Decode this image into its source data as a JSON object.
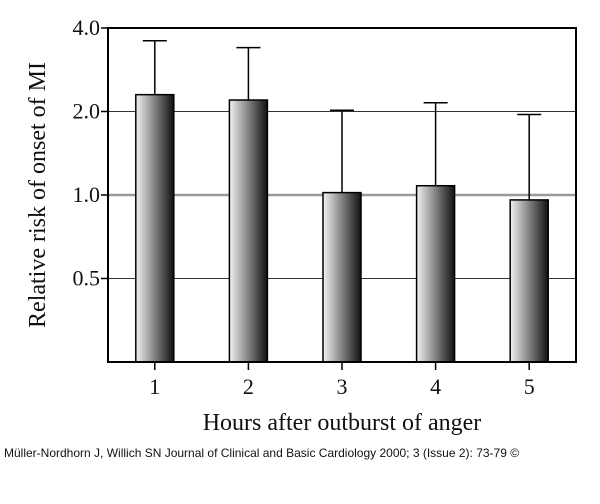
{
  "chart_data": {
    "type": "bar",
    "title": "",
    "xlabel": "Hours after outburst of anger",
    "ylabel": "Relative risk of onset of MI",
    "y_scale": "log",
    "ylim": [
      0.25,
      4.0
    ],
    "y_ticks": [
      "4.0",
      "2.0",
      "1.0",
      "0.5"
    ],
    "y_tick_values": [
      4.0,
      2.0,
      1.0,
      0.5
    ],
    "reference_line": 1.0,
    "grid": "horizontal",
    "categories": [
      "1",
      "2",
      "3",
      "4",
      "5"
    ],
    "values": [
      2.3,
      2.2,
      1.02,
      1.08,
      0.96
    ],
    "error_upper": [
      3.6,
      3.4,
      2.02,
      2.15,
      1.95
    ],
    "series": [
      {
        "values": [
          2.3,
          2.2,
          1.02,
          1.08,
          0.96
        ]
      }
    ]
  },
  "citation": "Müller-Nordhorn J, Willich SN Journal of Clinical and Basic Cardiology 2000; 3 (Issue 2): 73-79 ©",
  "colors": {
    "bar_dark": "#111111",
    "bar_light": "#f2f2f2",
    "grid": "#333333",
    "reference_line": "#9a9a9a",
    "frame": "#000000"
  }
}
